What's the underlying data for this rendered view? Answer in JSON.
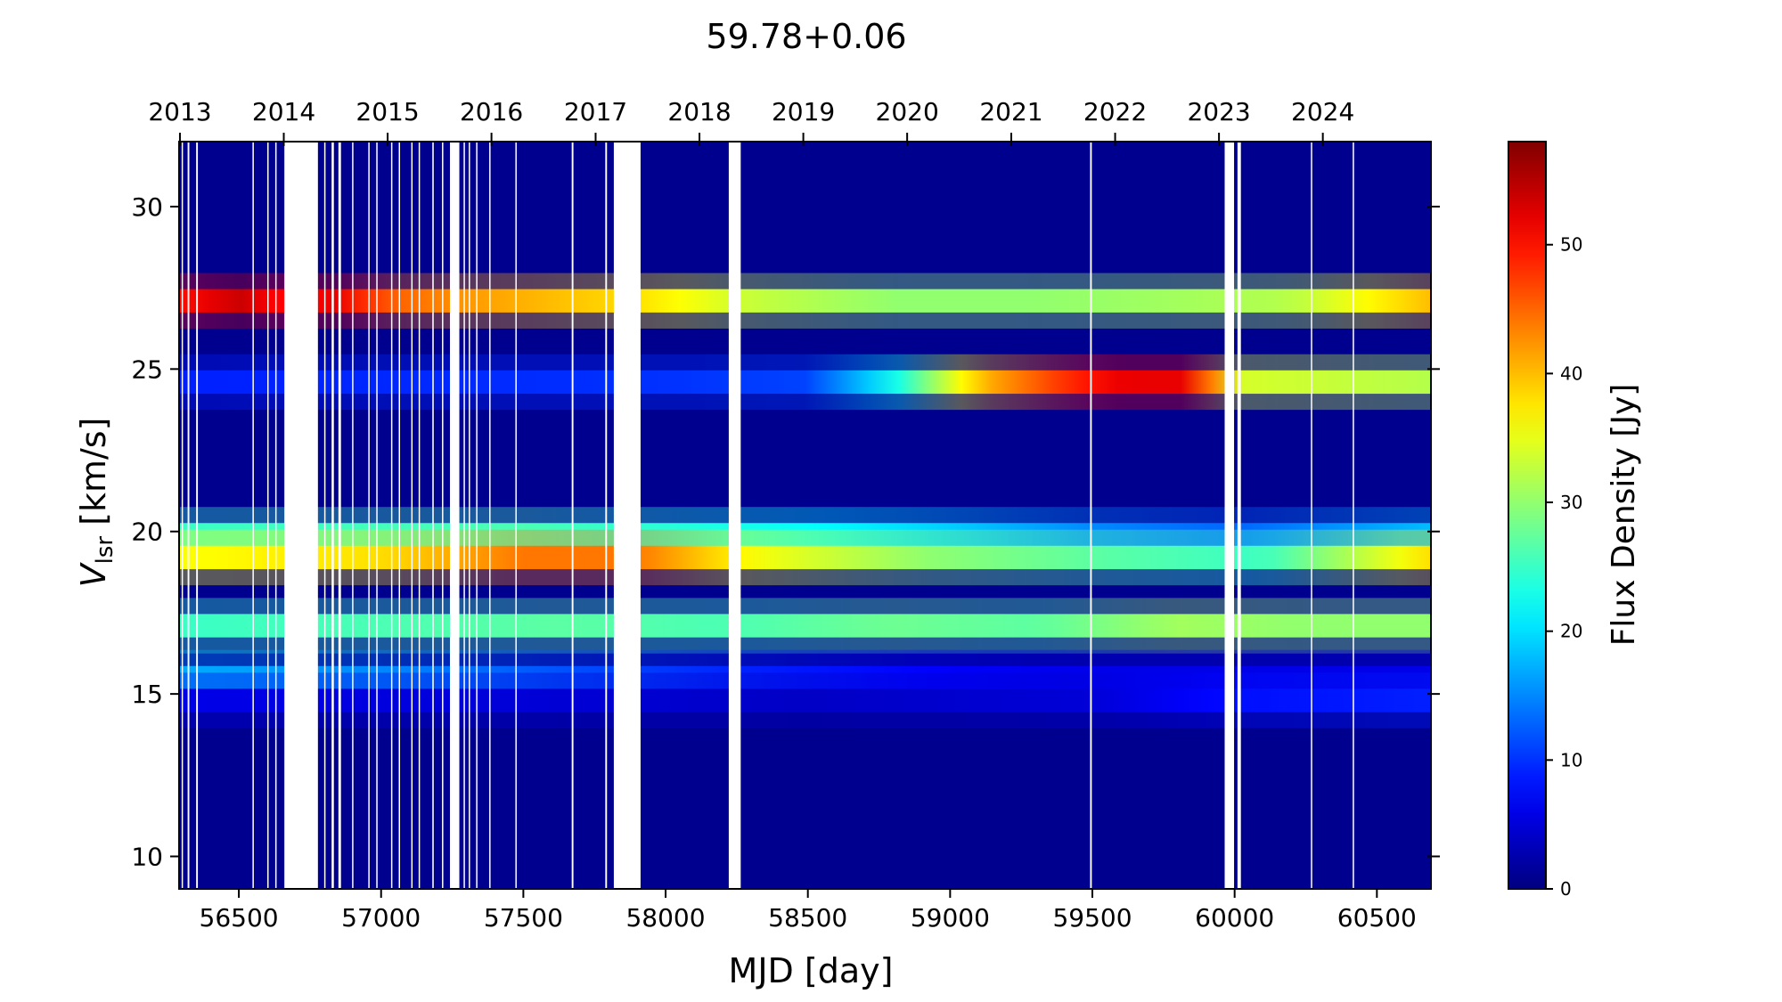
{
  "chart_data": {
    "type": "heatmap",
    "title": "59.78+0.06",
    "xlabel": "MJD [day]",
    "ylabel_main": "V",
    "ylabel_sub": "lsr",
    "ylabel_unit": " [km/s]",
    "colorbar_label": "Flux Density [Jy]",
    "colormap": "jet",
    "xlim": [
      56290,
      60690
    ],
    "ylim": [
      9,
      32
    ],
    "clim": [
      0,
      58
    ],
    "x_ticks": [
      56500,
      57000,
      57500,
      58000,
      58500,
      59000,
      59500,
      60000,
      60500
    ],
    "y_ticks": [
      10,
      15,
      20,
      25,
      30
    ],
    "colorbar_ticks": [
      0,
      10,
      20,
      30,
      40,
      50
    ],
    "top_axis": {
      "label": "",
      "years": [
        {
          "label": "2013",
          "mjd": 56293
        },
        {
          "label": "2014",
          "mjd": 56658
        },
        {
          "label": "2015",
          "mjd": 57023
        },
        {
          "label": "2016",
          "mjd": 57388
        },
        {
          "label": "2017",
          "mjd": 57754
        },
        {
          "label": "2018",
          "mjd": 58119
        },
        {
          "label": "2019",
          "mjd": 58484
        },
        {
          "label": "2020",
          "mjd": 58849
        },
        {
          "label": "2021",
          "mjd": 59215
        },
        {
          "label": "2022",
          "mjd": 59580
        },
        {
          "label": "2023",
          "mjd": 59945
        },
        {
          "label": "2024",
          "mjd": 60310
        }
      ]
    },
    "background_flux": 1.5,
    "emission_features": [
      {
        "velocity": 27.1,
        "profile": [
          [
            56290,
            50
          ],
          [
            56500,
            54
          ],
          [
            56650,
            50
          ],
          [
            56850,
            52
          ],
          [
            57000,
            46
          ],
          [
            57300,
            42
          ],
          [
            57600,
            40
          ],
          [
            57900,
            38
          ],
          [
            58300,
            33
          ],
          [
            58800,
            30
          ],
          [
            59300,
            30
          ],
          [
            59800,
            31
          ],
          [
            60200,
            32
          ],
          [
            60690,
            40
          ]
        ]
      },
      {
        "velocity": 24.6,
        "profile": [
          [
            56290,
            9
          ],
          [
            58000,
            10
          ],
          [
            58500,
            11
          ],
          [
            58800,
            22
          ],
          [
            59100,
            40
          ],
          [
            59400,
            48
          ],
          [
            59600,
            52
          ],
          [
            59850,
            52
          ],
          [
            60000,
            34
          ],
          [
            60690,
            32
          ]
        ]
      },
      {
        "velocity": 19.9,
        "profile": [
          [
            56290,
            25
          ],
          [
            57500,
            26
          ],
          [
            58000,
            24
          ],
          [
            58500,
            22
          ],
          [
            59000,
            19
          ],
          [
            59500,
            15
          ],
          [
            60000,
            13
          ],
          [
            60690,
            18
          ]
        ]
      },
      {
        "velocity": 19.2,
        "profile": [
          [
            56290,
            36
          ],
          [
            57000,
            38
          ],
          [
            57500,
            44
          ],
          [
            57900,
            44
          ],
          [
            58300,
            36
          ],
          [
            58900,
            30
          ],
          [
            59500,
            27
          ],
          [
            60100,
            25
          ],
          [
            60690,
            38
          ]
        ]
      },
      {
        "velocity": 17.1,
        "profile": [
          [
            56290,
            25
          ],
          [
            57000,
            26
          ],
          [
            57600,
            27
          ],
          [
            58200,
            26
          ],
          [
            58800,
            28
          ],
          [
            59300,
            27
          ],
          [
            59800,
            31
          ],
          [
            60200,
            30
          ],
          [
            60690,
            30
          ]
        ]
      },
      {
        "velocity": 15.5,
        "profile": [
          [
            56290,
            17
          ],
          [
            57000,
            15
          ],
          [
            57600,
            12
          ],
          [
            58300,
            9
          ],
          [
            59000,
            7
          ],
          [
            59500,
            6
          ],
          [
            60690,
            6
          ]
        ]
      },
      {
        "velocity": 14.8,
        "profile": [
          [
            56290,
            6
          ],
          [
            57500,
            5
          ],
          [
            58500,
            4
          ],
          [
            59500,
            5
          ],
          [
            60000,
            8
          ],
          [
            60690,
            9
          ]
        ]
      }
    ],
    "data_gaps_mjd": [
      [
        56299,
        56302
      ],
      [
        56320,
        56326
      ],
      [
        56350,
        56356
      ],
      [
        56548,
        56551
      ],
      [
        56600,
        56603
      ],
      [
        56628,
        56631
      ],
      [
        56660,
        56778
      ],
      [
        56800,
        56804
      ],
      [
        56826,
        56834
      ],
      [
        56850,
        56859
      ],
      [
        56898,
        56901
      ],
      [
        56955,
        56958
      ],
      [
        56983,
        56986
      ],
      [
        57035,
        57038
      ],
      [
        57062,
        57065
      ],
      [
        57106,
        57109
      ],
      [
        57132,
        57136
      ],
      [
        57180,
        57185
      ],
      [
        57214,
        57218
      ],
      [
        57242,
        57275
      ],
      [
        57290,
        57293
      ],
      [
        57308,
        57311
      ],
      [
        57334,
        57337
      ],
      [
        57380,
        57383
      ],
      [
        57472,
        57476
      ],
      [
        57670,
        57676
      ],
      [
        57788,
        57794
      ],
      [
        57818,
        57912
      ],
      [
        58222,
        58264
      ],
      [
        59492,
        59498
      ],
      [
        59965,
        59998
      ],
      [
        60010,
        60022
      ],
      [
        60268,
        60272
      ],
      [
        60415,
        60419
      ]
    ]
  }
}
